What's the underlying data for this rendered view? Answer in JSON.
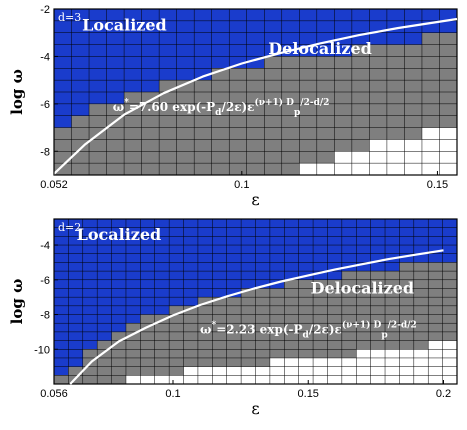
{
  "chart_data": [
    {
      "type": "heatmap",
      "dimension_label": "d=3",
      "xlabel": "ε",
      "ylabel": "log ω",
      "xlim": [
        0.052,
        0.155
      ],
      "ylim": [
        -9,
        -2
      ],
      "xticks": [
        0.052,
        0.1,
        0.15
      ],
      "xtick_labels": [
        "0.052",
        "0.1",
        "0.15"
      ],
      "yticks": [
        -8,
        -6,
        -4,
        -2
      ],
      "ytick_labels": [
        "-8",
        "-6",
        "-4",
        "-2"
      ],
      "grid": true,
      "region_labels": [
        {
          "text": "Localized",
          "x": 0.07,
          "y": -2.9,
          "color": "#ffffff"
        },
        {
          "text": "Delocalized",
          "x": 0.12,
          "y": -3.9,
          "color": "#ffffff"
        }
      ],
      "formula": {
        "lead": "ω",
        "sup1": "*",
        "mid": "=7.60 exp(-P",
        "sub1": "d",
        "mid2": "/2ε)ε",
        "sup2": "(ν+1) D",
        "sub2": "p",
        "tail": "/2-d/2",
        "x": 0.067,
        "y": -6.3
      },
      "colors": {
        "localized": "#1a3ccc",
        "delocalized": "#7f7f7f",
        "empty": "#ffffff",
        "curve": "#ffffff",
        "grid": "#000000"
      },
      "curve": {
        "prefactor": 7.6,
        "x": [
          0.052,
          0.06,
          0.07,
          0.08,
          0.09,
          0.1,
          0.11,
          0.12,
          0.13,
          0.14,
          0.15,
          0.155
        ],
        "log_omega": [
          -8.95,
          -7.7,
          -6.45,
          -5.55,
          -4.85,
          -4.3,
          -3.85,
          -3.45,
          -3.1,
          -2.8,
          -2.55,
          -2.42
        ]
      },
      "columns": 23,
      "rows": 14,
      "cell_threshold_rows": [
        10,
        9,
        8,
        8,
        7,
        7,
        6,
        6,
        6,
        5,
        5,
        5,
        4,
        4,
        4,
        4,
        4,
        3,
        3,
        3,
        3,
        2,
        2
      ],
      "white_from_bottom": [
        0,
        0,
        0,
        0,
        0,
        0,
        0,
        0,
        0,
        0,
        0,
        0,
        0,
        0,
        1,
        1,
        2,
        2,
        3,
        3,
        3,
        4,
        4
      ]
    },
    {
      "type": "heatmap",
      "dimension_label": "d=2",
      "xlabel": "ε",
      "ylabel": "log ω",
      "xlim": [
        0.056,
        0.205
      ],
      "ylim": [
        -12,
        -2.5
      ],
      "xticks": [
        0.056,
        0.1,
        0.15,
        0.2
      ],
      "xtick_labels": [
        "0.056",
        "0.1",
        "0.15",
        "0.2"
      ],
      "yticks": [
        -10,
        -8,
        -6,
        -4
      ],
      "ytick_labels": [
        "-10",
        "-8",
        "-6",
        "-4"
      ],
      "grid": true,
      "region_labels": [
        {
          "text": "Localized",
          "x": 0.08,
          "y": -3.7,
          "color": "#ffffff"
        },
        {
          "text": "Delocalized",
          "x": 0.17,
          "y": -6.8,
          "color": "#ffffff"
        }
      ],
      "formula": {
        "lead": "ω",
        "sup1": "*",
        "mid": "=2.23 exp(-P",
        "sub1": "d",
        "mid2": "/2ε)ε",
        "sup2": "(ν+1) D",
        "sub2": "p",
        "tail": "/2-d/2",
        "x": 0.11,
        "y": -9.1
      },
      "colors": {
        "localized": "#1a3ccc",
        "delocalized": "#7f7f7f",
        "empty": "#ffffff",
        "curve": "#ffffff",
        "grid": "#000000"
      },
      "curve": {
        "prefactor": 2.23,
        "x": [
          0.062,
          0.07,
          0.08,
          0.09,
          0.1,
          0.11,
          0.12,
          0.13,
          0.14,
          0.15,
          0.16,
          0.17,
          0.18,
          0.19,
          0.2
        ],
        "log_omega": [
          -12.0,
          -10.7,
          -9.55,
          -8.75,
          -8.05,
          -7.45,
          -6.95,
          -6.5,
          -6.1,
          -5.75,
          -5.4,
          -5.1,
          -4.8,
          -4.55,
          -4.3
        ]
      },
      "columns": 28,
      "rows": 19,
      "cell_threshold_rows": [
        18,
        17,
        15,
        14,
        13,
        12,
        11,
        11,
        10,
        10,
        9,
        9,
        9,
        8,
        8,
        8,
        7,
        7,
        7,
        7,
        6,
        6,
        6,
        6,
        5,
        5,
        5,
        5
      ],
      "white_from_bottom": [
        0,
        0,
        0,
        0,
        0,
        1,
        1,
        1,
        1,
        2,
        2,
        2,
        2,
        2,
        2,
        3,
        3,
        3,
        3,
        3,
        3,
        4,
        4,
        4,
        4,
        4,
        5,
        5
      ]
    }
  ]
}
